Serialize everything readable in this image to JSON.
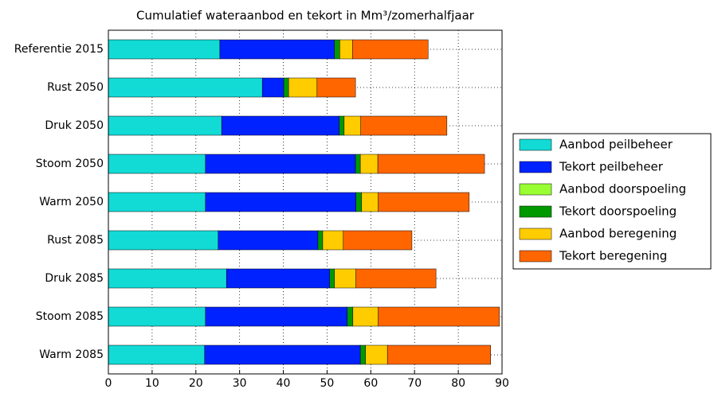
{
  "chart_data": {
    "type": "stacked-barh",
    "title": "Cumulatief wateraanbod en tekort in Mm³/zomerhalfjaar",
    "categories": [
      "Referentie 2015",
      "Rust 2050",
      "Druk 2050",
      "Stoom 2050",
      "Warm 2050",
      "Rust 2085",
      "Druk 2085",
      "Stoom 2085",
      "Warm 2085"
    ],
    "series": [
      {
        "name": "Aanbod peilbeheer",
        "color": "#12dbd6",
        "values": [
          25.5,
          35.2,
          25.9,
          22.2,
          22.2,
          25.1,
          27.0,
          22.2,
          22.0
        ]
      },
      {
        "name": "Tekort peilbeheer",
        "color": "#0022ff",
        "values": [
          26.2,
          4.9,
          26.9,
          34.3,
          34.4,
          22.8,
          23.6,
          32.4,
          35.6
        ]
      },
      {
        "name": "Aanbod doorspoeling",
        "color": "#99ff33",
        "values": [
          0,
          0,
          0,
          0,
          0,
          0,
          0,
          0,
          0
        ]
      },
      {
        "name": "Tekort doorspoeling",
        "color": "#009900",
        "values": [
          1.2,
          1.1,
          1.1,
          1.1,
          1.3,
          1.1,
          1.1,
          1.3,
          1.2
        ]
      },
      {
        "name": "Aanbod beregening",
        "color": "#ffcc00",
        "values": [
          2.9,
          6.5,
          3.8,
          4.0,
          3.8,
          4.7,
          4.9,
          5.8,
          5.0
        ]
      },
      {
        "name": "Tekort beregening",
        "color": "#ff6600",
        "values": [
          17.3,
          8.8,
          19.7,
          24.4,
          20.8,
          15.7,
          18.3,
          27.7,
          23.6
        ]
      }
    ],
    "xlim": [
      0,
      90
    ],
    "xticks": [
      0,
      10,
      20,
      30,
      40,
      50,
      60,
      70,
      80,
      90
    ],
    "grid": true,
    "legend": "right"
  }
}
